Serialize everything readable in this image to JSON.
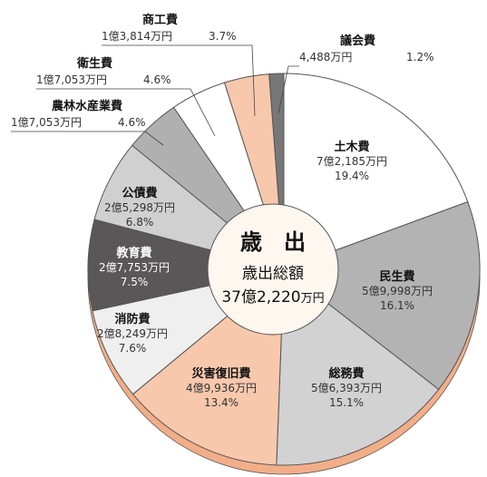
{
  "chart_data": {
    "type": "pie",
    "title": "歳　出",
    "center_label": "歳出総額",
    "total_number": "37億2,220",
    "total_unit": "万円",
    "slices": [
      {
        "name": "土木費",
        "amount": "7億2,185万円",
        "percent_label": "19.4%",
        "value": 19.4,
        "color": "#ffffff",
        "inside": true,
        "dark": false
      },
      {
        "name": "民生費",
        "amount": "5億9,998万円",
        "percent_label": "16.1%",
        "value": 16.1,
        "color": "#b3b3b3",
        "inside": true,
        "dark": false
      },
      {
        "name": "総務費",
        "amount": "5億6,393万円",
        "percent_label": "15.1%",
        "value": 15.1,
        "color": "#d2d2d2",
        "inside": true,
        "dark": false
      },
      {
        "name": "災害復旧費",
        "amount": "4億9,936万円",
        "percent_label": "13.4%",
        "value": 13.4,
        "color": "#f8c8ac",
        "inside": true,
        "dark": false
      },
      {
        "name": "消防費",
        "amount": "2億8,249万円",
        "percent_label": "7.6%",
        "value": 7.6,
        "color": "#efefef",
        "inside": true,
        "dark": false
      },
      {
        "name": "教育費",
        "amount": "2億7,753万円",
        "percent_label": "7.5%",
        "value": 7.5,
        "color": "#595757",
        "inside": true,
        "dark": true
      },
      {
        "name": "公債費",
        "amount": "2億5,298万円",
        "percent_label": "6.8%",
        "value": 6.8,
        "color": "#d0d0d0",
        "inside": true,
        "dark": false
      },
      {
        "name": "農林水産業費",
        "amount": "1億7,053万円",
        "percent_label": "4.6%",
        "value": 4.6,
        "color": "#b0b0b0",
        "inside": false,
        "dark": false
      },
      {
        "name": "衛生費",
        "amount": "1億7,053万円",
        "percent_label": "4.6%",
        "value": 4.6,
        "color": "#ffffff",
        "inside": false,
        "dark": false
      },
      {
        "name": "商工費",
        "amount": "1億3,814万円",
        "percent_label": "3.7%",
        "value": 3.7,
        "color": "#f8c8ac",
        "inside": false,
        "dark": false
      },
      {
        "name": "議会費",
        "amount": "4,488万円",
        "percent_label": "1.2%",
        "value": 1.2,
        "color": "#777777",
        "inside": false,
        "dark": false
      }
    ],
    "colors": {
      "shadow": "#f2ae88",
      "stroke": "#555555",
      "leader": "#444444"
    }
  }
}
